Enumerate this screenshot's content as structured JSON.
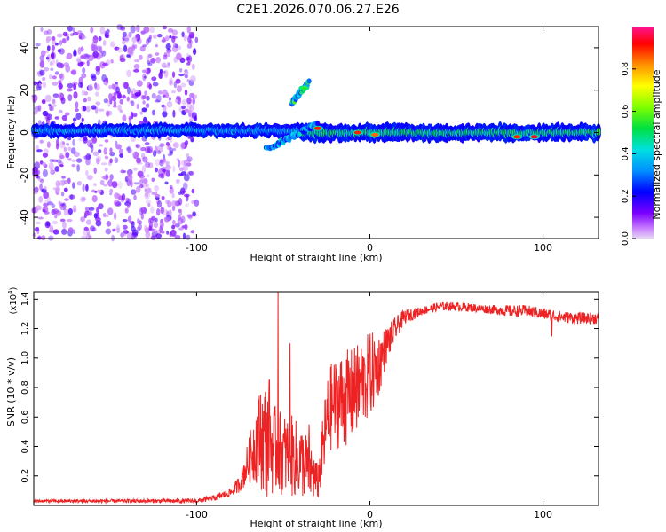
{
  "title": "C2E1.2026.070.06.27.E26",
  "colors": {
    "snr_line": "#ee2222",
    "axis": "#000000"
  },
  "chart_data": [
    {
      "type": "heatmap",
      "title": "C2E1.2026.070.06.27.E26",
      "xlabel": "Height of straight line (km)",
      "ylabel": "Frequency (Hz)",
      "xlim": [
        -194,
        132
      ],
      "ylim": [
        -50,
        50
      ],
      "x_ticks": [
        -100,
        0,
        100
      ],
      "x_tick_labels": [
        "-100",
        "0",
        "100"
      ],
      "y_ticks": [
        -40,
        -20,
        0,
        20,
        40
      ],
      "y_tick_labels": [
        "-40",
        "-20",
        "0",
        "20",
        "40"
      ],
      "colorbar": {
        "label": "Normalized spectral amplitude",
        "range": [
          0,
          1
        ],
        "ticks": [
          0.0,
          0.2,
          0.4,
          0.6,
          0.8
        ],
        "tick_labels": [
          "0.0",
          "0.2",
          "0.4",
          "0.6",
          "0.8"
        ],
        "colormap": "rainbow"
      },
      "features": [
        {
          "kind": "diffuse_noise",
          "x_range": [
            -194,
            -100
          ],
          "freq_range": [
            -50,
            50
          ],
          "amplitude": 0.15
        },
        {
          "kind": "band",
          "x_range": [
            -194,
            -40
          ],
          "freq_center": 1,
          "freq_halfwidth": 3,
          "amplitude": 0.3
        },
        {
          "kind": "band",
          "x_range": [
            -40,
            132
          ],
          "freq_center": 0,
          "freq_halfwidth": 4,
          "amplitude": 0.45
        },
        {
          "kind": "streak",
          "x_range": [
            -60,
            -30
          ],
          "freq_from": -8,
          "freq_to": 4,
          "amplitude": 0.25
        },
        {
          "kind": "streak",
          "x_range": [
            -45,
            -35
          ],
          "freq_from": 14,
          "freq_to": 24,
          "amplitude": 0.4
        },
        {
          "kind": "peak",
          "x": -38,
          "freq": 21,
          "amplitude": 0.55
        },
        {
          "kind": "peak",
          "x": -30,
          "freq": 2,
          "amplitude": 0.9
        },
        {
          "kind": "peak",
          "x": -7,
          "freq": 0,
          "amplitude": 0.9
        },
        {
          "kind": "peak",
          "x": 3,
          "freq": -1,
          "amplitude": 0.85
        },
        {
          "kind": "peak",
          "x": 85,
          "freq": -2,
          "amplitude": 0.9
        },
        {
          "kind": "peak",
          "x": 95,
          "freq": -2,
          "amplitude": 0.95
        }
      ]
    },
    {
      "type": "line",
      "xlabel": "Height of straight line (km)",
      "ylabel": "SNR (10 * v/v)",
      "scale_note": "(x10",
      "scale_exp": "4",
      "scale_close": ")",
      "xlim": [
        -194,
        132
      ],
      "ylim": [
        0,
        1.45
      ],
      "x_ticks": [
        -100,
        0,
        100
      ],
      "x_tick_labels": [
        "-100",
        "0",
        "100"
      ],
      "y_ticks": [
        0.2,
        0.4,
        0.6,
        0.8,
        1.0,
        1.2,
        1.4
      ],
      "y_tick_labels": [
        "0.2",
        "0.4",
        "0.6",
        "0.8",
        "1.0",
        "1.2",
        "1.4"
      ],
      "series": [
        {
          "color": "#ee2222",
          "envelope": {
            "x": [
              -194,
              -100,
              -90,
              -80,
              -75,
              -70,
              -65,
              -60,
              -55,
              -50,
              -45,
              -40,
              -35,
              -30,
              -25,
              -22,
              -18,
              -15,
              -10,
              -5,
              0,
              5,
              10,
              15,
              20,
              30,
              40,
              50,
              60,
              70,
              80,
              90,
              100,
              110,
              120,
              132
            ],
            "mean": [
              0.03,
              0.03,
              0.05,
              0.09,
              0.15,
              0.3,
              0.45,
              0.45,
              0.38,
              0.35,
              0.33,
              0.3,
              0.25,
              0.15,
              0.55,
              0.68,
              0.7,
              0.72,
              0.75,
              0.82,
              0.88,
              0.95,
              1.1,
              1.2,
              1.28,
              1.32,
              1.35,
              1.35,
              1.34,
              1.33,
              1.32,
              1.32,
              1.3,
              1.28,
              1.27,
              1.27
            ],
            "jitter": [
              0.01,
              0.015,
              0.02,
              0.03,
              0.06,
              0.15,
              0.3,
              0.4,
              0.3,
              0.28,
              0.28,
              0.25,
              0.22,
              0.12,
              0.3,
              0.3,
              0.32,
              0.33,
              0.32,
              0.3,
              0.3,
              0.22,
              0.12,
              0.08,
              0.05,
              0.03,
              0.03,
              0.03,
              0.03,
              0.03,
              0.04,
              0.04,
              0.04,
              0.04,
              0.04,
              0.04
            ]
          },
          "spikes": [
            {
              "x": -53,
              "y": 1.45
            },
            {
              "x": -46,
              "y": 1.1
            },
            {
              "x": -63,
              "y": 0.75
            },
            {
              "x": -58,
              "y": 0.85
            },
            {
              "x": -35,
              "y": 0.55
            },
            {
              "x": -17,
              "y": 0.95
            },
            {
              "x": -8,
              "y": 1.02
            },
            {
              "x": -3,
              "y": 0.95
            },
            {
              "x": 105,
              "y": 1.15
            }
          ]
        }
      ]
    }
  ]
}
